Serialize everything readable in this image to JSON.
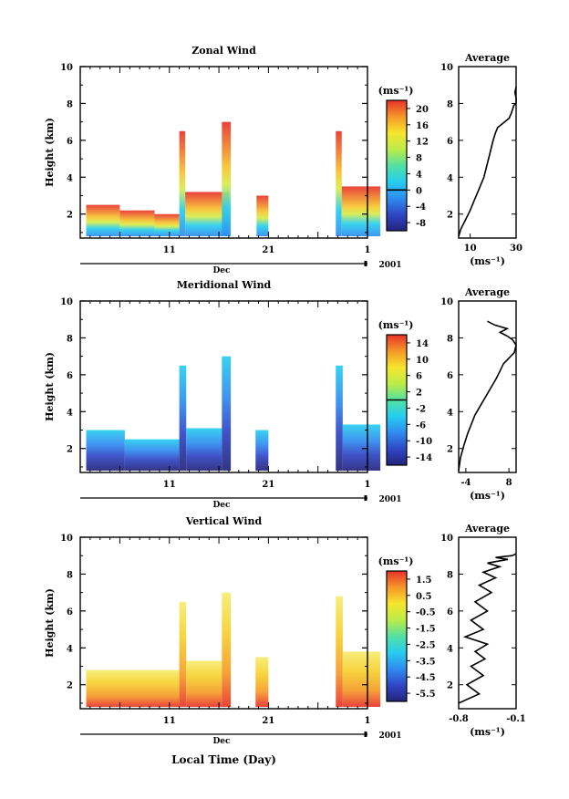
{
  "chart_data": [
    {
      "type": "heatmap",
      "title": "Zonal Wind",
      "xlabel": "",
      "ylabel": "Height (km)",
      "xlim_day": [
        2,
        31
      ],
      "ylim": [
        0.7,
        10
      ],
      "x_ticks": [
        "11",
        "21",
        "1"
      ],
      "x_unit_label": "Dec",
      "year_label": "2001",
      "y_ticks": [
        "2",
        "4",
        "6",
        "8",
        "10"
      ],
      "colorbar": {
        "unit": "(ms⁻¹)",
        "ticks": [
          "-8",
          "-4",
          "0",
          "4",
          "8",
          "12",
          "16",
          "20"
        ],
        "range": [
          -10,
          22
        ],
        "zero_line": 0
      },
      "data_blocks": [
        {
          "x0": 2.6,
          "x1": 6.0,
          "y0": 0.8,
          "y1": 2.5
        },
        {
          "x0": 6.0,
          "x1": 9.5,
          "y0": 0.8,
          "y1": 2.2
        },
        {
          "x0": 9.5,
          "x1": 12.0,
          "y0": 0.8,
          "y1": 2.0
        },
        {
          "x0": 12.0,
          "x1": 12.6,
          "y0": 0.8,
          "y1": 6.5
        },
        {
          "x0": 12.6,
          "x1": 17.0,
          "y0": 0.8,
          "y1": 3.2
        },
        {
          "x0": 16.3,
          "x1": 17.2,
          "y0": 0.8,
          "y1": 7.0
        },
        {
          "x0": 19.8,
          "x1": 21.0,
          "y0": 0.8,
          "y1": 3.0
        },
        {
          "x0": 27.8,
          "x1": 28.4,
          "y0": 0.8,
          "y1": 6.5
        },
        {
          "x0": 28.4,
          "x1": 32.3,
          "y0": 0.8,
          "y1": 3.5
        }
      ],
      "profile": {
        "title": "Average",
        "xlabel": "(ms⁻¹)",
        "x_ticks": [
          "10",
          "30"
        ],
        "xlim": [
          5,
          30
        ],
        "y_ticks": [
          "2",
          "4",
          "6",
          "8",
          "10"
        ],
        "x": [
          5,
          6,
          8,
          10,
          12,
          14,
          16,
          17,
          18,
          19,
          20,
          21,
          22,
          24,
          25,
          27,
          28,
          29,
          30,
          30,
          29.5,
          30
        ],
        "y": [
          0.8,
          1.2,
          1.7,
          2.2,
          2.8,
          3.4,
          4.0,
          4.5,
          5.0,
          5.5,
          6.0,
          6.4,
          6.7,
          6.9,
          7.0,
          7.2,
          7.5,
          7.9,
          8.0,
          8.3,
          8.6,
          8.9
        ]
      }
    },
    {
      "type": "heatmap",
      "title": "Meridional Wind",
      "xlabel": "",
      "ylabel": "Height (km)",
      "xlim_day": [
        2,
        31
      ],
      "ylim": [
        0.7,
        10
      ],
      "x_ticks": [
        "11",
        "21",
        "1"
      ],
      "x_unit_label": "Dec",
      "year_label": "2001",
      "y_ticks": [
        "2",
        "4",
        "6",
        "8",
        "10"
      ],
      "colorbar": {
        "unit": "(ms⁻¹)",
        "ticks": [
          "-14",
          "-10",
          "-6",
          "-2",
          "2",
          "6",
          "10",
          "14"
        ],
        "range": [
          -16,
          16
        ],
        "zero_line": 0
      },
      "data_blocks": [
        {
          "x0": 2.6,
          "x1": 6.5,
          "y0": 0.8,
          "y1": 3.0
        },
        {
          "x0": 6.5,
          "x1": 12.0,
          "y0": 0.8,
          "y1": 2.5
        },
        {
          "x0": 12.0,
          "x1": 12.7,
          "y0": 0.8,
          "y1": 6.5
        },
        {
          "x0": 12.7,
          "x1": 16.3,
          "y0": 0.8,
          "y1": 3.1
        },
        {
          "x0": 16.3,
          "x1": 17.2,
          "y0": 0.8,
          "y1": 7.0
        },
        {
          "x0": 19.7,
          "x1": 21.0,
          "y0": 0.8,
          "y1": 3.0
        },
        {
          "x0": 27.8,
          "x1": 28.5,
          "y0": 0.8,
          "y1": 6.5
        },
        {
          "x0": 28.5,
          "x1": 32.3,
          "y0": 0.8,
          "y1": 3.3
        }
      ],
      "profile": {
        "title": "Average",
        "xlabel": "(ms⁻¹)",
        "x_ticks": [
          "-4",
          "8"
        ],
        "xlim": [
          -6,
          10
        ],
        "y_ticks": [
          "2",
          "4",
          "6",
          "8",
          "10"
        ],
        "x": [
          -6,
          -5.5,
          -4.5,
          -3.5,
          -2.5,
          -1.5,
          0,
          1.5,
          3.0,
          4.5,
          5.5,
          6.5,
          7.5,
          8.5,
          9.5,
          10,
          9.0,
          7.5,
          5.5,
          7.5,
          4.0,
          2.0
        ],
        "y": [
          0.8,
          1.5,
          2.2,
          2.8,
          3.3,
          3.8,
          4.3,
          4.8,
          5.3,
          5.8,
          6.2,
          6.6,
          6.8,
          7.0,
          7.2,
          7.6,
          7.9,
          8.1,
          8.3,
          8.5,
          8.7,
          8.9
        ]
      }
    },
    {
      "type": "heatmap",
      "title": "Vertical Wind",
      "xlabel": "Local Time (Day)",
      "ylabel": "Height (km)",
      "xlim_day": [
        2,
        31
      ],
      "ylim": [
        0.7,
        10
      ],
      "x_ticks": [
        "11",
        "21",
        "1"
      ],
      "x_unit_label": "Dec",
      "year_label": "2001",
      "y_ticks": [
        "2",
        "4",
        "6",
        "8",
        "10"
      ],
      "colorbar": {
        "unit": "(ms⁻¹)",
        "ticks": [
          "-5.5",
          "-4.5",
          "-3.5",
          "-2.5",
          "-1.5",
          "-0.5",
          "0.5",
          "1.5"
        ],
        "range": [
          -6,
          2
        ]
      },
      "data_blocks": [
        {
          "x0": 2.6,
          "x1": 12.0,
          "y0": 0.8,
          "y1": 2.8
        },
        {
          "x0": 12.0,
          "x1": 12.7,
          "y0": 0.8,
          "y1": 6.5
        },
        {
          "x0": 12.7,
          "x1": 16.3,
          "y0": 0.8,
          "y1": 3.3
        },
        {
          "x0": 16.3,
          "x1": 17.2,
          "y0": 0.8,
          "y1": 7.0
        },
        {
          "x0": 19.7,
          "x1": 21.0,
          "y0": 0.8,
          "y1": 3.5
        },
        {
          "x0": 27.8,
          "x1": 28.5,
          "y0": 0.8,
          "y1": 6.8
        },
        {
          "x0": 28.5,
          "x1": 32.3,
          "y0": 0.8,
          "y1": 3.8
        }
      ],
      "profile": {
        "title": "Average",
        "xlabel": "(ms⁻¹)",
        "x_ticks": [
          "-0.8",
          "-0.1"
        ],
        "xlim": [
          -0.8,
          -0.1
        ],
        "y_ticks": [
          "2",
          "4",
          "6",
          "8",
          "10"
        ],
        "x": [
          -0.8,
          -0.55,
          -0.7,
          -0.5,
          -0.65,
          -0.48,
          -0.6,
          -0.45,
          -0.72,
          -0.5,
          -0.65,
          -0.45,
          -0.6,
          -0.4,
          -0.55,
          -0.35,
          -0.5,
          -0.3,
          -0.45,
          -0.2,
          -0.35,
          -0.15,
          -0.1
        ],
        "y": [
          1.0,
          1.5,
          2.0,
          2.5,
          3.0,
          3.4,
          3.8,
          4.2,
          4.6,
          5.0,
          5.5,
          6.0,
          6.5,
          7.0,
          7.4,
          7.8,
          8.1,
          8.4,
          8.6,
          8.8,
          8.9,
          9.0,
          9.1
        ]
      }
    }
  ]
}
